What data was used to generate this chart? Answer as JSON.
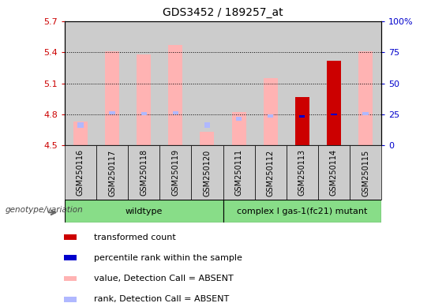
{
  "title": "GDS3452 / 189257_at",
  "samples": [
    "GSM250116",
    "GSM250117",
    "GSM250118",
    "GSM250119",
    "GSM250120",
    "GSM250111",
    "GSM250112",
    "GSM250113",
    "GSM250114",
    "GSM250115"
  ],
  "wildtype_count": 5,
  "mutant_count": 5,
  "wildtype_label": "wildtype",
  "mutant_label": "complex I gas-1(fc21) mutant",
  "ylim_left": [
    4.5,
    5.7
  ],
  "ylim_right": [
    0,
    100
  ],
  "yticks_left": [
    4.5,
    4.8,
    5.1,
    5.4,
    5.7
  ],
  "yticks_right": [
    0,
    25,
    50,
    75,
    100
  ],
  "left_tick_color": "#cc0000",
  "right_tick_color": "#0000cc",
  "pink_bar_color": "#ffb3b3",
  "lightblue_bar_color": "#b0b8ff",
  "red_bar_color": "#cc0000",
  "blue_bar_color": "#0000cc",
  "has_pink_bar": [
    true,
    true,
    true,
    true,
    true,
    true,
    true,
    false,
    false,
    true
  ],
  "absent_value_top": [
    4.73,
    5.41,
    5.38,
    5.47,
    4.63,
    4.82,
    5.15,
    4.97,
    5.32,
    5.41
  ],
  "absent_rank_top": [
    4.72,
    4.83,
    4.82,
    4.83,
    4.72,
    4.78,
    4.8,
    4.795,
    4.805,
    4.82
  ],
  "absent_rank_bot": [
    4.67,
    4.8,
    4.79,
    4.8,
    4.67,
    4.74,
    4.77,
    4.775,
    4.785,
    4.79
  ],
  "red_bar_samples_idx": [
    7,
    8
  ],
  "red_bar_tops": [
    4.97,
    5.32
  ],
  "blue_mark_samples_idx": [
    7,
    8
  ],
  "blue_mark_tops": [
    4.795,
    4.81
  ],
  "blue_mark_bots": [
    4.77,
    4.795
  ],
  "bar_width": 0.45,
  "legend_red": "transformed count",
  "legend_blue": "percentile rank within the sample",
  "legend_pink": "value, Detection Call = ABSENT",
  "legend_lightblue": "rank, Detection Call = ABSENT",
  "genotype_label": "genotype/variation",
  "col_bg_color": "#cccccc",
  "wildtype_bg": "#88dd88",
  "mutant_bg": "#88dd88"
}
